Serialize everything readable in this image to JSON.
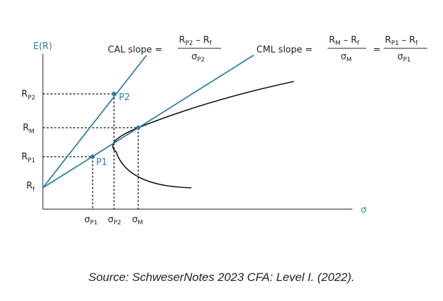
{
  "axes": {
    "y_label": "E(R)",
    "x_label": "σ"
  },
  "y_ticks": {
    "rp2": {
      "main": "R",
      "sub": "P2"
    },
    "rm": {
      "main": "R",
      "sub": "M"
    },
    "rp1": {
      "main": "R",
      "sub": "P1"
    },
    "rf": {
      "main": "R",
      "sub": "f"
    }
  },
  "x_ticks": {
    "sp1": {
      "main": "σ",
      "sub": "P1"
    },
    "sp2": {
      "main": "σ",
      "sub": "P2"
    },
    "sm": {
      "main": "σ",
      "sub": "M"
    }
  },
  "points": {
    "p1": "P1",
    "p2": "P2"
  },
  "cal": {
    "prefix": "CAL slope =",
    "num_a": "R",
    "num_a_sub": "P2",
    "num_op": " – ",
    "num_b": "R",
    "num_b_sub": "f",
    "den": "σ",
    "den_sub": "P2"
  },
  "cml": {
    "prefix": "CML slope =",
    "f1_num_a": "R",
    "f1_num_a_sub": "M",
    "f1_op": " – ",
    "f1_num_b": "R",
    "f1_num_b_sub": "f",
    "f1_den": "σ",
    "f1_den_sub": "M",
    "eq": "=",
    "f2_num_a": "R",
    "f2_num_a_sub": "P1",
    "f2_op": " – ",
    "f2_num_b": "R",
    "f2_num_b_sub": "f",
    "f2_den": "σ",
    "f2_den_sub": "P1"
  },
  "colors": {
    "blue": "#2f7fa3",
    "axis": "#444444",
    "frontier": "#111111"
  },
  "source": "Source: SchweserNotes 2023 CFA: Level I. (2022)."
}
